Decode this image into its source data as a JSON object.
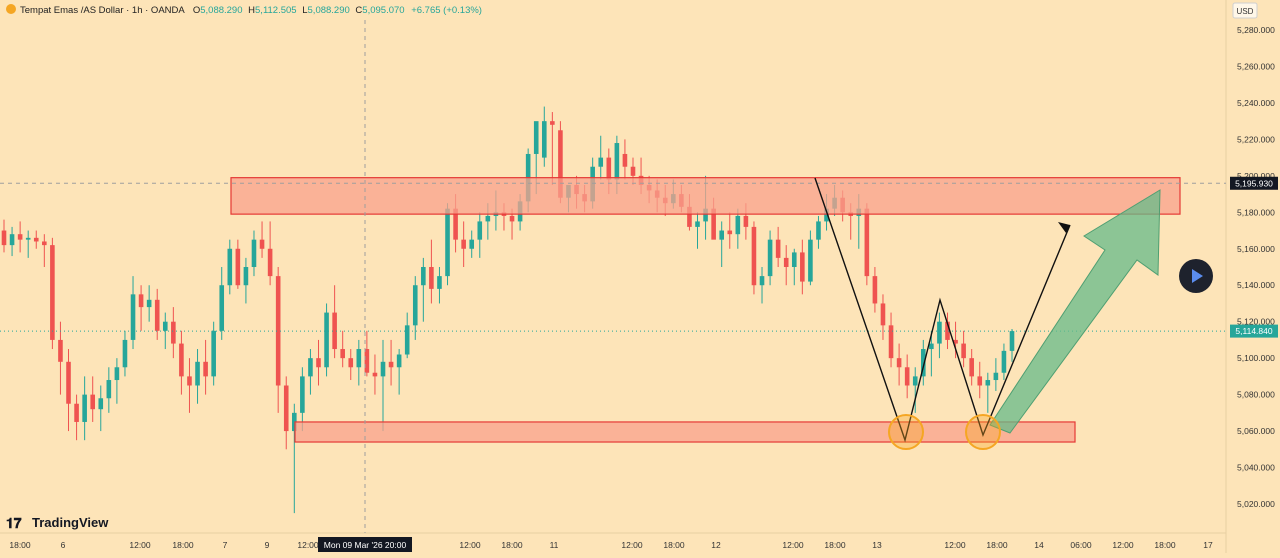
{
  "header": {
    "symbol": "Tempat Emas /AS Dollar · 1h · OANDA",
    "open_label": "O",
    "open": "5,088.290",
    "high_label": "H",
    "high": "5,112.505",
    "low_label": "L",
    "low": "5,088.290",
    "close_label": "C",
    "close": "5,095.070",
    "change": "+6.765 (+0.13%)"
  },
  "currency": "USD",
  "price_ticks": [
    "5,280.000",
    "5,260.000",
    "5,240.000",
    "5,220.000",
    "5,200.000",
    "5,180.000",
    "5,160.000",
    "5,140.000",
    "5,120.000",
    "5,100.000",
    "5,080.000",
    "5,060.000",
    "5,040.000",
    "5,020.000"
  ],
  "price_tick_values": [
    5280,
    5260,
    5240,
    5220,
    5200,
    5180,
    5160,
    5140,
    5120,
    5100,
    5080,
    5060,
    5040,
    5020
  ],
  "time_labels": [
    "18:00",
    "6",
    "12:00",
    "18:00",
    "7",
    "9",
    "12:00",
    "12:00",
    "18:00",
    "11",
    "12:00",
    "18:00",
    "12",
    "12:00",
    "18:00",
    "13",
    "12:00",
    "18:00",
    "14",
    "06:00",
    "12:00",
    "18:00",
    "17"
  ],
  "crosshair": {
    "time_label": "Mon 09 Mar '26   20:00",
    "price_label": "5,195.930",
    "price": 5195.93
  },
  "last_price": {
    "label": "5,114.840",
    "price": 5114.84
  },
  "brand": "TradingView",
  "colors": {
    "up": "#26a69a",
    "down": "#ef5350",
    "bg": "#fde4b8",
    "zone_fill": "#f8a28c",
    "zone_stroke": "#e53935",
    "arrow_fill": "#66bb8a",
    "circle_stroke": "#f5a623"
  },
  "chart_data": {
    "type": "candlestick",
    "y_range": [
      5010,
      5290
    ],
    "series": [
      {
        "name": "candles",
        "values": [
          [
            5170,
            5176,
            5158,
            5162
          ],
          [
            5162,
            5172,
            5156,
            5168
          ],
          [
            5168,
            5175,
            5158,
            5165
          ],
          [
            5165,
            5170,
            5155,
            5166
          ],
          [
            5166,
            5170,
            5160,
            5164
          ],
          [
            5164,
            5168,
            5150,
            5162
          ],
          [
            5162,
            5166,
            5105,
            5110
          ],
          [
            5110,
            5120,
            5080,
            5098
          ],
          [
            5098,
            5105,
            5060,
            5075
          ],
          [
            5075,
            5080,
            5055,
            5065
          ],
          [
            5065,
            5090,
            5055,
            5080
          ],
          [
            5080,
            5090,
            5065,
            5072
          ],
          [
            5072,
            5085,
            5060,
            5078
          ],
          [
            5078,
            5095,
            5070,
            5088
          ],
          [
            5088,
            5100,
            5075,
            5095
          ],
          [
            5095,
            5115,
            5090,
            5110
          ],
          [
            5110,
            5145,
            5105,
            5135
          ],
          [
            5135,
            5140,
            5115,
            5128
          ],
          [
            5128,
            5140,
            5120,
            5132
          ],
          [
            5132,
            5138,
            5110,
            5115
          ],
          [
            5115,
            5125,
            5105,
            5120
          ],
          [
            5120,
            5128,
            5100,
            5108
          ],
          [
            5108,
            5115,
            5080,
            5090
          ],
          [
            5090,
            5100,
            5070,
            5085
          ],
          [
            5085,
            5105,
            5075,
            5098
          ],
          [
            5098,
            5110,
            5080,
            5090
          ],
          [
            5090,
            5120,
            5085,
            5115
          ],
          [
            5115,
            5150,
            5110,
            5140
          ],
          [
            5140,
            5165,
            5135,
            5160
          ],
          [
            5160,
            5165,
            5138,
            5140
          ],
          [
            5140,
            5155,
            5130,
            5150
          ],
          [
            5150,
            5170,
            5145,
            5165
          ],
          [
            5165,
            5175,
            5155,
            5160
          ],
          [
            5160,
            5175,
            5140,
            5145
          ],
          [
            5145,
            5150,
            5070,
            5085
          ],
          [
            5085,
            5090,
            5050,
            5060
          ],
          [
            5060,
            5075,
            5015,
            5070
          ],
          [
            5070,
            5095,
            5060,
            5090
          ],
          [
            5090,
            5105,
            5080,
            5100
          ],
          [
            5100,
            5110,
            5085,
            5095
          ],
          [
            5095,
            5130,
            5090,
            5125
          ],
          [
            5125,
            5140,
            5100,
            5105
          ],
          [
            5105,
            5115,
            5095,
            5100
          ],
          [
            5100,
            5105,
            5088,
            5095
          ],
          [
            5095,
            5110,
            5085,
            5105
          ],
          [
            5105,
            5115,
            5090,
            5092
          ],
          [
            5092,
            5102,
            5080,
            5090
          ],
          [
            5090,
            5110,
            5060,
            5098
          ],
          [
            5098,
            5110,
            5085,
            5095
          ],
          [
            5095,
            5105,
            5080,
            5102
          ],
          [
            5102,
            5125,
            5100,
            5118
          ],
          [
            5118,
            5145,
            5110,
            5140
          ],
          [
            5140,
            5155,
            5120,
            5150
          ],
          [
            5150,
            5165,
            5130,
            5138
          ],
          [
            5138,
            5150,
            5130,
            5145
          ],
          [
            5145,
            5185,
            5140,
            5182
          ],
          [
            5182,
            5190,
            5158,
            5165
          ],
          [
            5165,
            5175,
            5150,
            5160
          ],
          [
            5160,
            5170,
            5155,
            5165
          ],
          [
            5165,
            5180,
            5155,
            5175
          ],
          [
            5175,
            5185,
            5165,
            5178
          ],
          [
            5178,
            5192,
            5170,
            5180
          ],
          [
            5180,
            5185,
            5170,
            5178
          ],
          [
            5178,
            5182,
            5165,
            5175
          ],
          [
            5175,
            5190,
            5170,
            5186
          ],
          [
            5186,
            5215,
            5180,
            5212
          ],
          [
            5212,
            5225,
            5190,
            5230
          ],
          [
            5210,
            5238,
            5205,
            5230
          ],
          [
            5230,
            5235,
            5195,
            5228
          ],
          [
            5225,
            5230,
            5185,
            5188
          ],
          [
            5188,
            5195,
            5180,
            5195
          ],
          [
            5195,
            5200,
            5182,
            5190
          ],
          [
            5190,
            5195,
            5180,
            5186
          ],
          [
            5186,
            5210,
            5182,
            5205
          ],
          [
            5205,
            5222,
            5198,
            5210
          ],
          [
            5210,
            5215,
            5190,
            5198
          ],
          [
            5198,
            5222,
            5190,
            5218
          ],
          [
            5212,
            5220,
            5198,
            5205
          ],
          [
            5205,
            5210,
            5195,
            5200
          ],
          [
            5200,
            5210,
            5190,
            5195
          ],
          [
            5195,
            5200,
            5185,
            5192
          ],
          [
            5192,
            5198,
            5180,
            5188
          ],
          [
            5188,
            5195,
            5178,
            5185
          ],
          [
            5185,
            5198,
            5182,
            5190
          ],
          [
            5190,
            5195,
            5180,
            5183
          ],
          [
            5183,
            5190,
            5170,
            5172
          ],
          [
            5172,
            5180,
            5160,
            5175
          ],
          [
            5175,
            5200,
            5165,
            5182
          ],
          [
            5182,
            5188,
            5170,
            5165
          ],
          [
            5165,
            5175,
            5150,
            5170
          ],
          [
            5170,
            5180,
            5160,
            5168
          ],
          [
            5168,
            5182,
            5160,
            5178
          ],
          [
            5178,
            5185,
            5165,
            5172
          ],
          [
            5172,
            5175,
            5135,
            5140
          ],
          [
            5140,
            5150,
            5130,
            5145
          ],
          [
            5145,
            5170,
            5140,
            5165
          ],
          [
            5165,
            5172,
            5150,
            5155
          ],
          [
            5155,
            5162,
            5140,
            5150
          ],
          [
            5150,
            5160,
            5140,
            5158
          ],
          [
            5158,
            5165,
            5135,
            5142
          ],
          [
            5142,
            5170,
            5140,
            5165
          ],
          [
            5165,
            5178,
            5160,
            5175
          ],
          [
            5175,
            5190,
            5170,
            5182
          ],
          [
            5182,
            5195,
            5178,
            5188
          ],
          [
            5188,
            5192,
            5175,
            5180
          ],
          [
            5180,
            5185,
            5165,
            5178
          ],
          [
            5178,
            5190,
            5160,
            5182
          ],
          [
            5182,
            5185,
            5140,
            5145
          ],
          [
            5145,
            5150,
            5125,
            5130
          ],
          [
            5130,
            5135,
            5110,
            5118
          ],
          [
            5118,
            5125,
            5095,
            5100
          ],
          [
            5100,
            5108,
            5085,
            5095
          ],
          [
            5095,
            5102,
            5078,
            5085
          ],
          [
            5085,
            5095,
            5070,
            5090
          ],
          [
            5090,
            5110,
            5085,
            5105
          ],
          [
            5105,
            5115,
            5090,
            5108
          ],
          [
            5108,
            5125,
            5100,
            5120
          ],
          [
            5120,
            5125,
            5105,
            5110
          ],
          [
            5110,
            5120,
            5100,
            5108
          ],
          [
            5108,
            5115,
            5095,
            5100
          ],
          [
            5100,
            5105,
            5085,
            5090
          ],
          [
            5090,
            5098,
            5078,
            5085
          ],
          [
            5085,
            5092,
            5070,
            5088
          ],
          [
            5088,
            5100,
            5082,
            5092
          ],
          [
            5092,
            5108,
            5088,
            5104
          ],
          [
            5104,
            5116,
            5098,
            5114.84
          ]
        ]
      }
    ],
    "annotations": {
      "resistance_zone": [
        5179,
        5199
      ],
      "support_zone": [
        5054,
        5065
      ],
      "pattern": "double bottom"
    }
  }
}
